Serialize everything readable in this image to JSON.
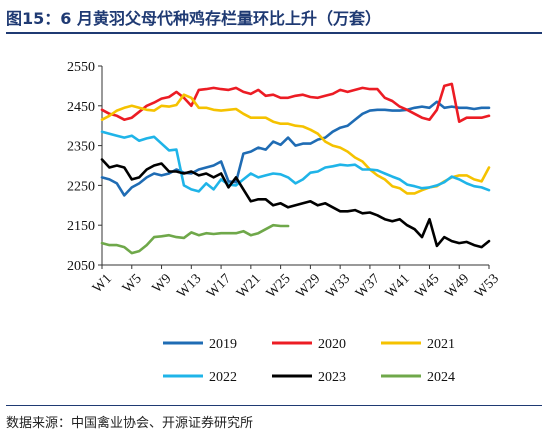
{
  "title": "图15：6 月黄羽父母代种鸡存栏量环比上升（万套）",
  "source": "数据来源：中国禽业协会、开源证券研究所",
  "chart_data": {
    "type": "line",
    "title": "图15：6 月黄羽父母代种鸡存栏量环比上升（万套）",
    "ylabel": "",
    "xlabel": "",
    "ylim": [
      2050,
      2550
    ],
    "yticks": [
      2050,
      2150,
      2250,
      2350,
      2450,
      2550
    ],
    "xlim": [
      1,
      53
    ],
    "xticks": [
      "W1",
      "W5",
      "W9",
      "W13",
      "W17",
      "W21",
      "W25",
      "W29",
      "W33",
      "W37",
      "W41",
      "W45",
      "W49",
      "W53"
    ],
    "grid": false,
    "legend_position": "bottom",
    "series": [
      {
        "name": "2019",
        "color": "#1f6cb4",
        "values": [
          2270,
          2265,
          2255,
          2225,
          2245,
          2255,
          2270,
          2280,
          2275,
          2280,
          2290,
          2282,
          2280,
          2290,
          2295,
          2300,
          2310,
          2260,
          2258,
          2330,
          2335,
          2345,
          2340,
          2360,
          2352,
          2370,
          2350,
          2355,
          2355,
          2365,
          2370,
          2385,
          2395,
          2400,
          2415,
          2430,
          2438,
          2440,
          2440,
          2438,
          2438,
          2440,
          2445,
          2448,
          2445,
          2460,
          2445,
          2448,
          2445,
          2445,
          2442,
          2445,
          2445
        ]
      },
      {
        "name": "2020",
        "color": "#ec1c24",
        "values": [
          2440,
          2430,
          2425,
          2415,
          2420,
          2435,
          2450,
          2458,
          2468,
          2472,
          2485,
          2470,
          2450,
          2490,
          2492,
          2495,
          2492,
          2490,
          2495,
          2485,
          2480,
          2490,
          2475,
          2478,
          2470,
          2470,
          2475,
          2478,
          2472,
          2470,
          2475,
          2480,
          2490,
          2485,
          2490,
          2495,
          2492,
          2492,
          2470,
          2462,
          2448,
          2440,
          2430,
          2420,
          2415,
          2440,
          2500,
          2505,
          2410,
          2420,
          2420,
          2420,
          2425
        ]
      },
      {
        "name": "2021",
        "color": "#f5c200",
        "values": [
          2415,
          2425,
          2438,
          2445,
          2450,
          2445,
          2440,
          2438,
          2450,
          2448,
          2452,
          2478,
          2470,
          2445,
          2445,
          2440,
          2438,
          2440,
          2442,
          2430,
          2420,
          2420,
          2420,
          2410,
          2405,
          2405,
          2400,
          2398,
          2390,
          2380,
          2360,
          2350,
          2345,
          2335,
          2320,
          2310,
          2290,
          2275,
          2265,
          2248,
          2243,
          2230,
          2230,
          2238,
          2245,
          2248,
          2260,
          2270,
          2275,
          2275,
          2265,
          2260,
          2295
        ]
      },
      {
        "name": "2022",
        "color": "#1fb4e8",
        "values": [
          2385,
          2380,
          2375,
          2370,
          2375,
          2362,
          2368,
          2372,
          2355,
          2338,
          2340,
          2250,
          2240,
          2235,
          2255,
          2240,
          2265,
          2252,
          2250,
          2265,
          2280,
          2270,
          2275,
          2280,
          2278,
          2270,
          2255,
          2265,
          2282,
          2285,
          2295,
          2298,
          2302,
          2300,
          2302,
          2290,
          2290,
          2288,
          2280,
          2272,
          2265,
          2252,
          2248,
          2243,
          2245,
          2250,
          2258,
          2272,
          2265,
          2255,
          2248,
          2245,
          2238
        ]
      },
      {
        "name": "2023",
        "color": "#000000",
        "values": [
          2315,
          2295,
          2300,
          2295,
          2265,
          2270,
          2290,
          2300,
          2305,
          2285,
          2285,
          2280,
          2285,
          2275,
          2280,
          2270,
          2280,
          2245,
          2270,
          2240,
          2210,
          2215,
          2215,
          2200,
          2205,
          2195,
          2200,
          2205,
          2210,
          2200,
          2205,
          2195,
          2185,
          2185,
          2188,
          2180,
          2182,
          2175,
          2165,
          2160,
          2165,
          2150,
          2140,
          2120,
          2165,
          2098,
          2120,
          2110,
          2105,
          2108,
          2100,
          2095,
          2110
        ]
      },
      {
        "name": "2024",
        "color": "#6fa84a",
        "values": [
          2105,
          2100,
          2100,
          2095,
          2080,
          2085,
          2100,
          2120,
          2122,
          2125,
          2120,
          2118,
          2132,
          2125,
          2130,
          2128,
          2130,
          2130,
          2130,
          2135,
          2125,
          2130,
          2140,
          2150,
          2148,
          2148
        ]
      }
    ]
  }
}
